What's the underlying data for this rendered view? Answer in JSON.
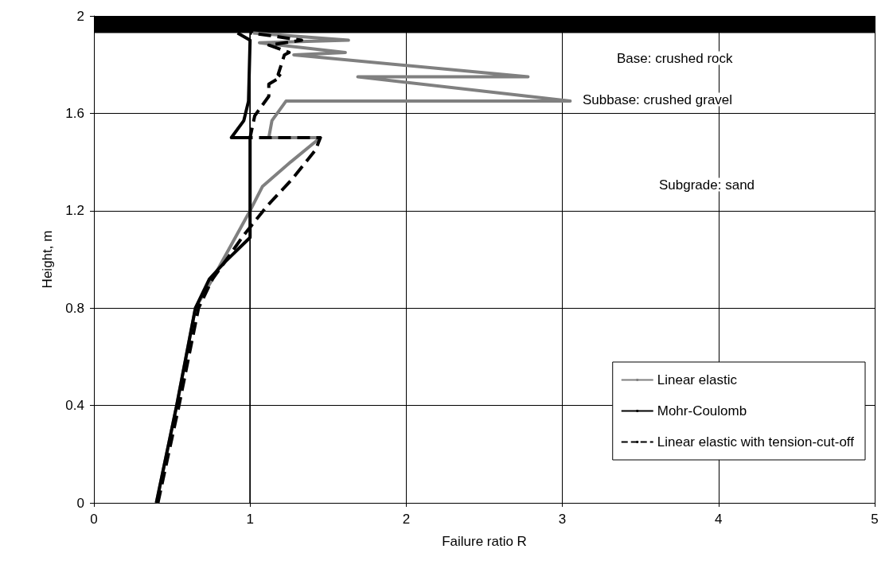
{
  "chart_data": {
    "type": "line",
    "xlabel": "Failure ratio R",
    "ylabel": "Height, m",
    "xlim": [
      0,
      5
    ],
    "xticks": [
      0,
      1,
      2,
      3,
      4,
      5
    ],
    "ylim": [
      0,
      2
    ],
    "yticks": [
      0,
      0.4,
      0.8,
      1.2,
      1.6,
      2
    ],
    "grid": true,
    "legend": "bottom right",
    "marker": "none",
    "series": [
      {
        "name": "Linear elastic",
        "color": "#808080",
        "line_style": "solid",
        "x": [
          0.4,
          0.53,
          0.65,
          0.76,
          1.0,
          1.08,
          1.26,
          1.45,
          1.12,
          1.14,
          1.23,
          3.05,
          1.69,
          2.78,
          1.28,
          1.61,
          1.06,
          1.63,
          1.02
        ],
        "values": [
          0,
          0.4,
          0.8,
          0.92,
          1.2,
          1.3,
          1.4,
          1.5,
          1.5,
          1.57,
          1.65,
          1.65,
          1.75,
          1.75,
          1.84,
          1.85,
          1.89,
          1.9,
          1.93
        ]
      },
      {
        "name": "Mohr-Coulomb",
        "color": "#000000",
        "line_style": "solid",
        "x": [
          0.4,
          0.53,
          0.65,
          0.74,
          0.84,
          1.0,
          1.0,
          0.88,
          0.96,
          0.99,
          1.0,
          0.92
        ],
        "values": [
          0,
          0.4,
          0.8,
          0.92,
          0.99,
          1.09,
          1.5,
          1.5,
          1.57,
          1.65,
          1.9,
          1.93
        ]
      },
      {
        "name": "Linear elastic with tension-cut-off",
        "color": "#000000",
        "line_style": "dashed",
        "x": [
          0.41,
          0.545,
          0.67,
          0.76,
          0.85,
          0.96,
          1.11,
          1.27,
          1.42,
          1.45,
          1.0,
          1.03,
          1.12,
          1.12,
          1.2,
          1.18,
          1.22,
          1.25,
          1.12,
          1.33,
          1.12,
          1.0
        ],
        "values": [
          0,
          0.4,
          0.8,
          0.92,
          1.0,
          1.1,
          1.22,
          1.33,
          1.45,
          1.5,
          1.5,
          1.59,
          1.67,
          1.72,
          1.75,
          1.76,
          1.84,
          1.85,
          1.88,
          1.9,
          1.92,
          1.93
        ]
      }
    ],
    "ref_lines": [
      {
        "axis": "x",
        "value": 1,
        "label": null,
        "color": "#000000",
        "line_style": "solid"
      }
    ],
    "bands": [
      {
        "axis": "y",
        "from": 1.93,
        "to": 2,
        "label": null,
        "color": "#000000"
      }
    ],
    "annotations": [
      "Base: crushed rock",
      "Subbase: crushed gravel",
      "Subgrade: sand"
    ]
  }
}
